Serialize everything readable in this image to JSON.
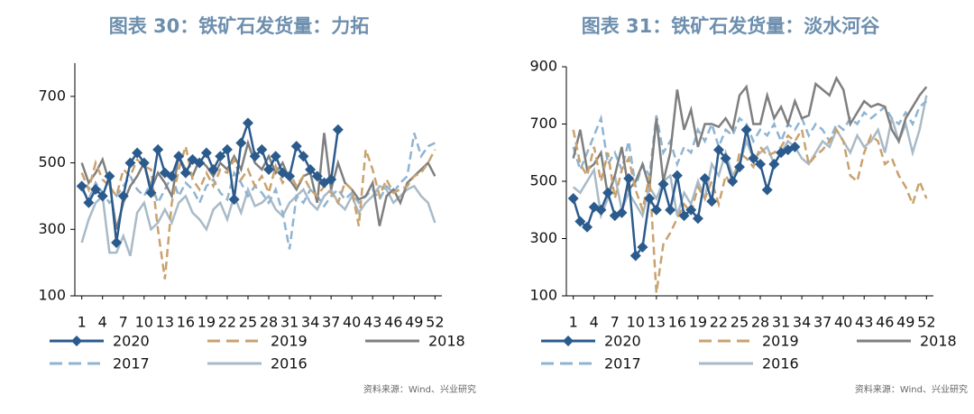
{
  "chart_data": [
    {
      "type": "line",
      "title": "图表 30：铁矿石发货量：力拓",
      "source": "资料来源：Wind、兴业研究",
      "x": [
        1,
        2,
        3,
        4,
        5,
        6,
        7,
        8,
        9,
        10,
        11,
        12,
        13,
        14,
        15,
        16,
        17,
        18,
        19,
        20,
        21,
        22,
        23,
        24,
        25,
        26,
        27,
        28,
        29,
        30,
        31,
        32,
        33,
        34,
        35,
        36,
        37,
        38,
        39,
        40,
        41,
        42,
        43,
        44,
        45,
        46,
        47,
        48,
        49,
        50,
        51,
        52
      ],
      "xlim": [
        0,
        53
      ],
      "xticks": [
        1,
        4,
        7,
        10,
        13,
        16,
        19,
        22,
        25,
        28,
        31,
        34,
        37,
        40,
        43,
        46,
        49,
        52
      ],
      "ylim": [
        100,
        800
      ],
      "yticks": [
        100,
        300,
        500,
        700
      ],
      "grid": false,
      "legend": "bottom",
      "series": [
        {
          "name": "2020",
          "color": "#2b5b8d",
          "dash": false,
          "marker": "diamond",
          "values": [
            430,
            380,
            420,
            400,
            460,
            260,
            400,
            500,
            530,
            500,
            410,
            540,
            470,
            460,
            520,
            470,
            510,
            500,
            530,
            480,
            520,
            540,
            390,
            560,
            620,
            520,
            540,
            480,
            520,
            470,
            460,
            550,
            520,
            480,
            460,
            440,
            450,
            600,
            null,
            null,
            null,
            null,
            null,
            null,
            null,
            null,
            null,
            null,
            null,
            null,
            null,
            null
          ]
        },
        {
          "name": "2019",
          "color": "#c9a26e",
          "dash": true,
          "marker": "none",
          "values": [
            470,
            420,
            500,
            450,
            430,
            400,
            480,
            460,
            510,
            490,
            480,
            300,
            150,
            380,
            480,
            550,
            450,
            420,
            470,
            430,
            480,
            470,
            510,
            450,
            480,
            430,
            460,
            410,
            490,
            440,
            470,
            430,
            460,
            420,
            400,
            430,
            410,
            380,
            440,
            420,
            310,
            540,
            480,
            400,
            450,
            410,
            420,
            430,
            460,
            470,
            500,
            540
          ]
        },
        {
          "name": "2018",
          "color": "#7f7f7f",
          "dash": false,
          "marker": "none",
          "values": [
            500,
            440,
            470,
            510,
            440,
            300,
            380,
            430,
            460,
            500,
            420,
            470,
            440,
            400,
            520,
            480,
            460,
            510,
            490,
            460,
            500,
            480,
            520,
            480,
            560,
            500,
            480,
            520,
            470,
            500,
            450,
            420,
            460,
            470,
            380,
            590,
            420,
            500,
            440,
            420,
            390,
            400,
            440,
            310,
            400,
            420,
            380,
            440,
            460,
            480,
            500,
            460
          ]
        },
        {
          "name": "2017",
          "color": "#8fb4d2",
          "dash": true,
          "marker": "none",
          "values": [
            420,
            390,
            440,
            410,
            380,
            400,
            430,
            460,
            420,
            400,
            440,
            380,
            420,
            460,
            400,
            440,
            420,
            380,
            430,
            450,
            410,
            390,
            470,
            440,
            400,
            430,
            410,
            380,
            420,
            350,
            240,
            400,
            380,
            420,
            400,
            370,
            400,
            420,
            390,
            410,
            380,
            400,
            420,
            390,
            430,
            410,
            440,
            460,
            590,
            520,
            550,
            560
          ]
        },
        {
          "name": "2016",
          "color": "#a9bac7",
          "dash": false,
          "marker": "none",
          "values": [
            260,
            330,
            380,
            400,
            230,
            230,
            280,
            220,
            350,
            380,
            300,
            320,
            360,
            320,
            380,
            400,
            350,
            330,
            300,
            360,
            380,
            330,
            400,
            350,
            420,
            370,
            380,
            400,
            360,
            340,
            380,
            400,
            420,
            380,
            360,
            400,
            420,
            380,
            360,
            400,
            350,
            380,
            400,
            430,
            420,
            380,
            400,
            420,
            430,
            400,
            380,
            320
          ]
        }
      ]
    },
    {
      "type": "line",
      "title": "图表 31：铁矿石发货量：淡水河谷",
      "source": "资料来源：Wind、兴业研究",
      "x": [
        1,
        2,
        3,
        4,
        5,
        6,
        7,
        8,
        9,
        10,
        11,
        12,
        13,
        14,
        15,
        16,
        17,
        18,
        19,
        20,
        21,
        22,
        23,
        24,
        25,
        26,
        27,
        28,
        29,
        30,
        31,
        32,
        33,
        34,
        35,
        36,
        37,
        38,
        39,
        40,
        41,
        42,
        43,
        44,
        45,
        46,
        47,
        48,
        49,
        50,
        51,
        52
      ],
      "xlim": [
        0,
        53
      ],
      "xticks": [
        1,
        4,
        7,
        10,
        13,
        16,
        19,
        22,
        25,
        28,
        31,
        34,
        37,
        40,
        43,
        46,
        49,
        52
      ],
      "ylim": [
        100,
        900
      ],
      "yticks": [
        100,
        300,
        500,
        700,
        900
      ],
      "grid": false,
      "legend": "bottom",
      "series": [
        {
          "name": "2020",
          "color": "#2b5b8d",
          "dash": false,
          "marker": "diamond",
          "values": [
            440,
            360,
            340,
            410,
            400,
            460,
            380,
            390,
            510,
            240,
            270,
            440,
            400,
            490,
            400,
            520,
            380,
            400,
            370,
            510,
            430,
            610,
            580,
            500,
            550,
            680,
            580,
            560,
            470,
            560,
            600,
            610,
            620,
            null,
            null,
            null,
            null,
            null,
            null,
            null,
            null,
            null,
            null,
            null,
            null,
            null,
            null,
            null,
            null,
            null,
            null,
            null
          ]
        },
        {
          "name": "2019",
          "color": "#c9a26e",
          "dash": true,
          "marker": "none",
          "values": [
            680,
            560,
            520,
            620,
            500,
            600,
            440,
            540,
            580,
            470,
            400,
            520,
            110,
            280,
            320,
            370,
            420,
            390,
            480,
            440,
            500,
            420,
            520,
            480,
            600,
            580,
            550,
            620,
            590,
            600,
            620,
            660,
            640,
            680,
            560,
            590,
            610,
            640,
            680,
            640,
            520,
            500,
            600,
            660,
            640,
            560,
            580,
            520,
            480,
            420,
            500,
            440
          ]
        },
        {
          "name": "2018",
          "color": "#7f7f7f",
          "dash": false,
          "marker": "none",
          "values": [
            580,
            680,
            540,
            560,
            600,
            450,
            520,
            620,
            470,
            500,
            560,
            480,
            720,
            500,
            600,
            820,
            680,
            750,
            620,
            700,
            700,
            690,
            720,
            680,
            800,
            830,
            700,
            700,
            800,
            720,
            760,
            700,
            780,
            720,
            730,
            840,
            820,
            800,
            860,
            820,
            700,
            740,
            780,
            760,
            770,
            760,
            680,
            640,
            720,
            760,
            800,
            830
          ]
        },
        {
          "name": "2017",
          "color": "#8fb4d2",
          "dash": true,
          "marker": "none",
          "values": [
            620,
            540,
            600,
            660,
            720,
            560,
            600,
            540,
            640,
            480,
            560,
            520,
            730,
            600,
            640,
            560,
            620,
            600,
            680,
            640,
            700,
            620,
            680,
            660,
            720,
            700,
            640,
            680,
            660,
            700,
            640,
            700,
            680,
            720,
            660,
            700,
            680,
            640,
            700,
            680,
            720,
            700,
            740,
            720,
            740,
            760,
            720,
            700,
            740,
            700,
            760,
            780
          ]
        },
        {
          "name": "2016",
          "color": "#a9bac7",
          "dash": false,
          "marker": "none",
          "values": [
            480,
            460,
            500,
            540,
            380,
            440,
            520,
            400,
            460,
            420,
            380,
            480,
            440,
            500,
            520,
            380,
            460,
            420,
            500,
            440,
            560,
            520,
            600,
            520,
            560,
            640,
            580,
            600,
            620,
            560,
            600,
            640,
            620,
            580,
            560,
            600,
            640,
            620,
            680,
            640,
            600,
            660,
            620,
            640,
            680,
            600,
            720,
            640,
            700,
            600,
            680,
            800
          ]
        }
      ]
    }
  ]
}
